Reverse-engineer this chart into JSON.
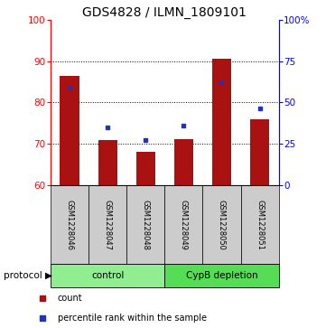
{
  "title": "GDS4828 / ILMN_1809101",
  "samples": [
    "GSM1228046",
    "GSM1228047",
    "GSM1228048",
    "GSM1228049",
    "GSM1228050",
    "GSM1228051"
  ],
  "red_values": [
    86.5,
    71.0,
    68.0,
    71.2,
    90.5,
    76.0
  ],
  "blue_values": [
    83.5,
    74.0,
    71.0,
    74.5,
    85.0,
    78.5
  ],
  "ylim": [
    60,
    100
  ],
  "yticks_left": [
    60,
    70,
    80,
    90,
    100
  ],
  "yticks_right": [
    0,
    25,
    50,
    75,
    100
  ],
  "yticklabels_right": [
    "0",
    "25",
    "50",
    "75",
    "100%"
  ],
  "control_label": "control",
  "depletion_label": "CypB depletion",
  "protocol_label": "protocol",
  "legend_red": "count",
  "legend_blue": "percentile rank within the sample",
  "bar_color": "#aa1111",
  "blue_color": "#2233bb",
  "control_bg": "#90EE90",
  "depletion_bg": "#55dd55",
  "sample_bg": "#cccccc",
  "bar_width": 0.5,
  "title_fontsize": 10,
  "tick_fontsize": 7.5,
  "label_fontsize": 7.5
}
